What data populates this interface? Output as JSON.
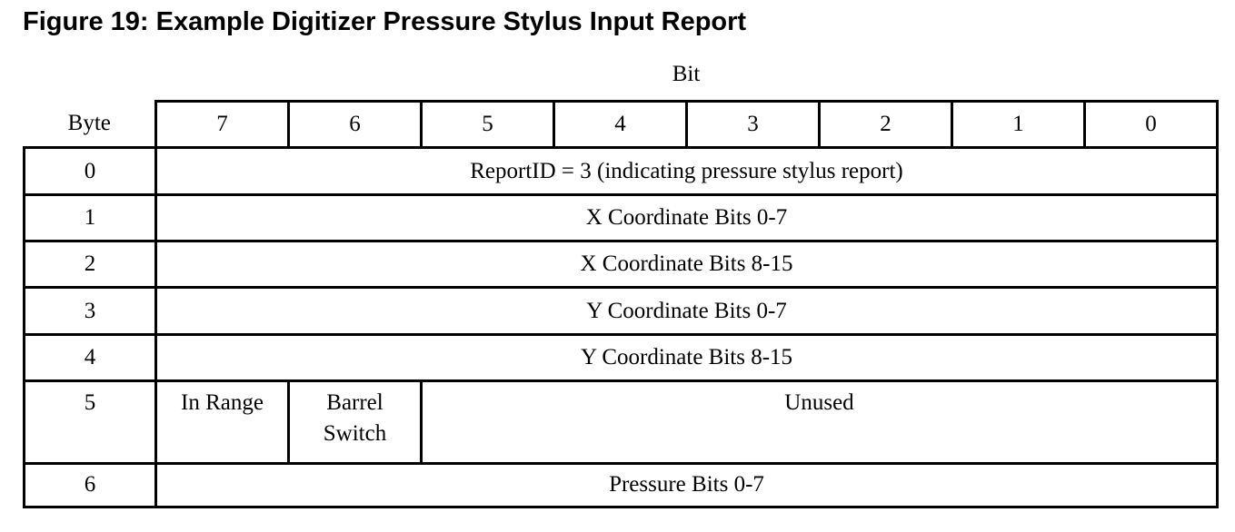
{
  "figure": {
    "title": "Figure 19: Example Digitizer Pressure Stylus Input Report"
  },
  "table": {
    "bit_header": "Bit",
    "byte_header": "Byte",
    "bit_columns": [
      "7",
      "6",
      "5",
      "4",
      "3",
      "2",
      "1",
      "0"
    ],
    "rows": [
      {
        "byte": "0",
        "content": "ReportID = 3 (indicating pressure stylus report)"
      },
      {
        "byte": "1",
        "content": "X Coordinate Bits 0-7"
      },
      {
        "byte": "2",
        "content": "X Coordinate Bits 8-15"
      },
      {
        "byte": "3",
        "content": "Y Coordinate Bits 0-7"
      },
      {
        "byte": "4",
        "content": "Y Coordinate Bits 8-15"
      },
      {
        "byte": "5",
        "bit7": "In Range",
        "bit6_line1": "Barrel",
        "bit6_line2": "Switch",
        "rest": "Unused"
      },
      {
        "byte": "6",
        "content": "Pressure Bits 0-7"
      }
    ]
  }
}
